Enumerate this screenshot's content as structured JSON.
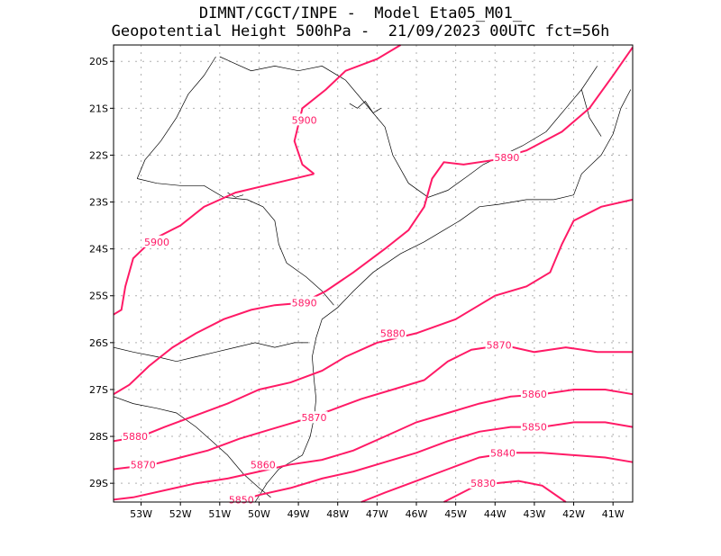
{
  "title": {
    "line1": "DIMNT/CGCT/INPE -  Model Eta05_M01_",
    "line2": "Geopotential Height 500hPa -  21/09/2023 00UTC fct=56h"
  },
  "axes": {
    "lat_labels": [
      "20S",
      "21S",
      "22S",
      "23S",
      "24S",
      "25S",
      "26S",
      "27S",
      "28S",
      "29S"
    ],
    "lon_labels": [
      "53W",
      "52W",
      "51W",
      "50W",
      "49W",
      "48W",
      "47W",
      "46W",
      "45W",
      "44W",
      "43W",
      "42W",
      "41W"
    ]
  },
  "colors": {
    "contour": "#ff1a66",
    "coast": "#000000",
    "grid": "#b0b0b0",
    "frame": "#000000"
  },
  "contour_labels": [
    {
      "id": "c5900a",
      "text": "5900",
      "lon": -48.85,
      "lat": -21.25
    },
    {
      "id": "c5900b",
      "text": "5900",
      "lon": -52.6,
      "lat": -23.85
    },
    {
      "id": "c5890a",
      "text": "5890",
      "lon": -43.7,
      "lat": -22.05
    },
    {
      "id": "c5890b",
      "text": "5890",
      "lon": -48.85,
      "lat": -25.15
    },
    {
      "id": "c5880a",
      "text": "5880",
      "lon": -46.6,
      "lat": -25.8
    },
    {
      "id": "c5880b",
      "text": "5880",
      "lon": -53.15,
      "lat": -28.0
    },
    {
      "id": "c5870a",
      "text": "5870",
      "lon": -43.9,
      "lat": -26.05
    },
    {
      "id": "c5870b",
      "text": "5870",
      "lon": -48.6,
      "lat": -27.6
    },
    {
      "id": "c5870c",
      "text": "5870",
      "lon": -52.95,
      "lat": -28.6
    },
    {
      "id": "c5860a",
      "text": "5860",
      "lon": -43.0,
      "lat": -27.1
    },
    {
      "id": "c5860b",
      "text": "5860",
      "lon": -49.9,
      "lat": -28.6
    },
    {
      "id": "c5850a",
      "text": "5850",
      "lon": -43.0,
      "lat": -27.8
    },
    {
      "id": "c5850b",
      "text": "5850",
      "lon": -50.45,
      "lat": -29.35
    },
    {
      "id": "c5840",
      "text": "5840",
      "lon": -43.8,
      "lat": -28.35
    },
    {
      "id": "c5830",
      "text": "5830",
      "lon": -44.3,
      "lat": -29.0
    }
  ]
}
